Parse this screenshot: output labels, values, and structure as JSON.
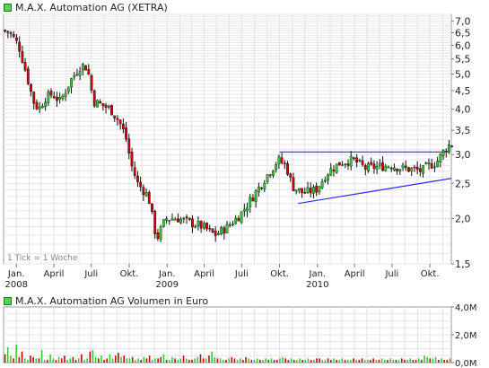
{
  "chart_data": [
    {
      "type": "candlestick",
      "title": "M.A.X. Automation AG (XETRA)",
      "scale": "log",
      "ylim": [
        1.5,
        7.3
      ],
      "y_ticks": [
        7.0,
        6.5,
        6.0,
        5.5,
        5.0,
        4.5,
        4.0,
        3.5,
        3.0,
        2.5,
        2.0,
        1.5
      ],
      "y_tick_labels": [
        "7,0",
        "6,5",
        "6,0",
        "5,5",
        "5,0",
        "4,5",
        "4,0",
        "3,5",
        "3,0",
        "2,5",
        "2,0",
        "1,5"
      ],
      "x_range": [
        "2007-12-01",
        "2010-11-22"
      ],
      "x_ticks": [
        {
          "date": "2008-01-01",
          "label": "Jan.",
          "year": "2008"
        },
        {
          "date": "2008-04-01",
          "label": "April"
        },
        {
          "date": "2008-07-01",
          "label": "Juli"
        },
        {
          "date": "2008-10-01",
          "label": "Okt."
        },
        {
          "date": "2009-01-01",
          "label": "Jan.",
          "year": "2009"
        },
        {
          "date": "2009-04-01",
          "label": "April"
        },
        {
          "date": "2009-07-01",
          "label": "Juli"
        },
        {
          "date": "2009-10-01",
          "label": "Okt."
        },
        {
          "date": "2010-01-01",
          "label": "Jan.",
          "year": "2010"
        },
        {
          "date": "2010-04-01",
          "label": "April"
        },
        {
          "date": "2010-07-01",
          "label": "Juli"
        },
        {
          "date": "2010-10-01",
          "label": "Okt."
        }
      ],
      "grid": true,
      "annotation": "1 Tick = 1 Woche",
      "series_colors": {
        "up": "#33cc33",
        "down": "#cc0000",
        "wick": "#111111"
      },
      "price_path": [
        [
          "2007-12-01",
          6.6
        ],
        [
          "2007-12-20",
          6.5
        ],
        [
          "2008-01-10",
          6.0
        ],
        [
          "2008-01-25",
          5.2
        ],
        [
          "2008-02-15",
          4.2
        ],
        [
          "2008-02-28",
          4.0
        ],
        [
          "2008-03-15",
          4.3
        ],
        [
          "2008-04-01",
          4.4
        ],
        [
          "2008-04-20",
          4.2
        ],
        [
          "2008-05-15",
          4.8
        ],
        [
          "2008-06-10",
          5.3
        ],
        [
          "2008-06-25",
          5.2
        ],
        [
          "2008-07-10",
          4.2
        ],
        [
          "2008-08-01",
          4.1
        ],
        [
          "2008-08-20",
          4.0
        ],
        [
          "2008-09-10",
          3.7
        ],
        [
          "2008-09-25",
          3.4
        ],
        [
          "2008-10-10",
          2.8
        ],
        [
          "2008-10-25",
          2.5
        ],
        [
          "2008-11-20",
          2.3
        ],
        [
          "2008-12-10",
          1.75
        ],
        [
          "2009-01-01",
          2.0
        ],
        [
          "2009-02-01",
          2.0
        ],
        [
          "2009-03-01",
          1.95
        ],
        [
          "2009-04-01",
          1.9
        ],
        [
          "2009-05-01",
          1.8
        ],
        [
          "2009-06-01",
          1.9
        ],
        [
          "2009-07-01",
          2.05
        ],
        [
          "2009-08-01",
          2.3
        ],
        [
          "2009-09-01",
          2.6
        ],
        [
          "2009-10-01",
          2.9
        ],
        [
          "2009-10-20",
          2.8
        ],
        [
          "2009-11-05",
          2.45
        ],
        [
          "2009-12-01",
          2.35
        ],
        [
          "2010-01-01",
          2.4
        ],
        [
          "2010-02-01",
          2.7
        ],
        [
          "2010-03-01",
          2.85
        ],
        [
          "2010-04-01",
          2.9
        ],
        [
          "2010-05-01",
          2.75
        ],
        [
          "2010-06-01",
          2.78
        ],
        [
          "2010-07-01",
          2.8
        ],
        [
          "2010-08-01",
          2.75
        ],
        [
          "2010-09-01",
          2.72
        ],
        [
          "2010-09-15",
          2.7
        ],
        [
          "2010-10-01",
          2.8
        ],
        [
          "2010-10-20",
          2.85
        ],
        [
          "2010-11-10",
          3.1
        ],
        [
          "2010-11-22",
          3.2
        ]
      ],
      "lines": [
        {
          "kind": "resistance",
          "color": "#2a2aff",
          "from": [
            "2009-10-01",
            3.05
          ],
          "to": [
            "2010-11-15",
            3.05
          ]
        },
        {
          "kind": "support",
          "color": "#2a2aff",
          "from": [
            "2009-11-15",
            2.2
          ],
          "to": [
            "2010-11-22",
            2.58
          ]
        }
      ]
    },
    {
      "type": "bar",
      "title": "M.A.X. Automation AG Volumen in Euro",
      "ylim": [
        0,
        4.0
      ],
      "unit": "M",
      "y_ticks": [
        0,
        2,
        4
      ],
      "y_tick_labels": [
        "0,0M",
        "2,0M",
        "4,0M"
      ],
      "colors": {
        "up": "#33cc33",
        "down": "#cc0000"
      },
      "note": "weekly volume bars, values estimated",
      "values": [
        0.6,
        1.1,
        0.5,
        0.3,
        1.3,
        0.4,
        0.8,
        0.3,
        0.2,
        0.5,
        0.4,
        0.3,
        0.3,
        0.9,
        0.2,
        0.2,
        0.6,
        0.3,
        0.2,
        0.4,
        0.3,
        0.5,
        0.2,
        0.3,
        0.4,
        0.2,
        0.3,
        0.6,
        0.2,
        0.3,
        0.8,
        0.9,
        0.4,
        0.3,
        0.5,
        0.2,
        0.3,
        0.6,
        0.3,
        0.5,
        0.7,
        0.4,
        0.5,
        0.3,
        0.3,
        0.4,
        0.2,
        0.3,
        0.2,
        0.4,
        0.3,
        0.5,
        0.2,
        0.3,
        0.3,
        0.4,
        0.6,
        0.2,
        0.2,
        0.4,
        0.3,
        0.2,
        0.3,
        0.5,
        0.3,
        0.2,
        0.2,
        0.3,
        0.4,
        0.6,
        0.3,
        0.3,
        0.5,
        0.8,
        0.4,
        0.3,
        0.3,
        0.2,
        0.2,
        0.3,
        0.4,
        0.3,
        0.2,
        0.3,
        0.2,
        0.4,
        0.3,
        0.2,
        0.2,
        0.3,
        0.2,
        0.2,
        0.3,
        0.2,
        0.3,
        0.2,
        0.2,
        0.3,
        0.4,
        0.3,
        0.2,
        0.3,
        0.2,
        0.2,
        0.3,
        0.2,
        0.2,
        0.3,
        0.2,
        0.2,
        0.3,
        0.3,
        0.2,
        0.2,
        0.3,
        0.2,
        0.3,
        0.2,
        0.2,
        0.3,
        0.2,
        0.2,
        0.2,
        0.3,
        0.2,
        0.2,
        0.3,
        0.2,
        0.2,
        0.2,
        0.3,
        0.2,
        0.2,
        0.3,
        0.2,
        0.2,
        0.3,
        0.2,
        0.2,
        0.2,
        0.3,
        0.2,
        0.2,
        0.3,
        0.2,
        0.2,
        0.3,
        0.2,
        0.5,
        0.4,
        0.3,
        0.3,
        0.4,
        0.2,
        0.3,
        0.2,
        0.2,
        0.3
      ]
    }
  ]
}
